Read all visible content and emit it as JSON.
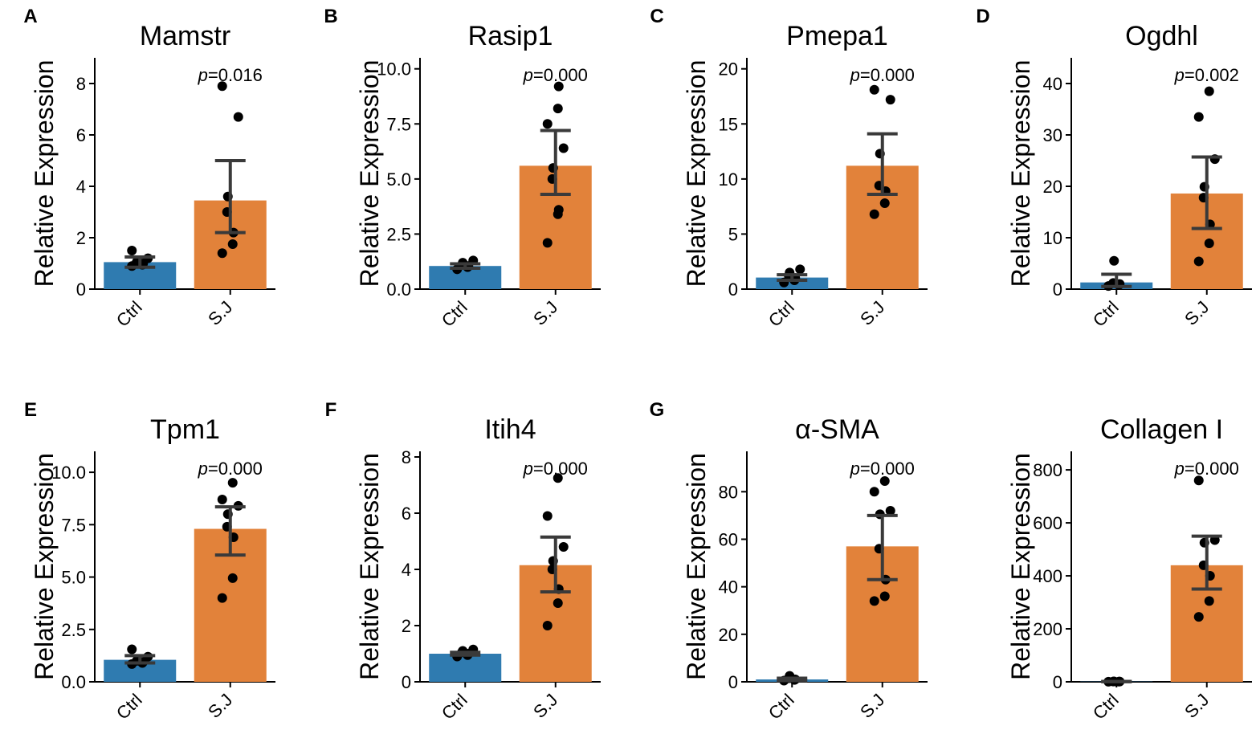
{
  "chart_data": [
    {
      "type": "bar",
      "panel": "A",
      "title": "Mamstr",
      "ylabel": "Relative Expression",
      "categories": [
        "Ctrl",
        "S.J"
      ],
      "values": [
        1.05,
        3.45
      ],
      "error": [
        [
          0.85,
          1.25
        ],
        [
          2.2,
          5.0
        ]
      ],
      "points": [
        [
          0.9,
          0.95,
          1.0,
          1.05,
          1.1,
          1.2,
          1.5
        ],
        [
          1.4,
          1.75,
          2.2,
          3.0,
          3.6,
          6.7,
          7.9
        ]
      ],
      "p_value": "=0.016",
      "ylim": [
        0,
        9
      ],
      "yticks": [
        "0",
        "2",
        "4",
        "6",
        "8"
      ],
      "colors": [
        "#2f7bb0",
        "#e2823a"
      ]
    },
    {
      "type": "bar",
      "panel": "B",
      "title": "Rasip1",
      "ylabel": "Relative Expression",
      "categories": [
        "Ctrl",
        "S.J"
      ],
      "values": [
        1.05,
        5.6
      ],
      "error": [
        [
          0.95,
          1.15
        ],
        [
          4.3,
          7.2
        ]
      ],
      "points": [
        [
          0.9,
          1.0,
          1.05,
          1.1,
          1.2,
          1.3
        ],
        [
          2.1,
          3.4,
          3.6,
          5.0,
          5.5,
          6.4,
          7.5,
          8.2,
          9.2
        ]
      ],
      "p_value": "=0.000",
      "ylim": [
        0,
        10.5
      ],
      "yticks": [
        "0.0",
        "2.5",
        "5.0",
        "7.5",
        "10.0"
      ],
      "colors": [
        "#2f7bb0",
        "#e2823a"
      ]
    },
    {
      "type": "bar",
      "panel": "C",
      "title": "Pmepa1",
      "ylabel": "Relative Expression",
      "categories": [
        "Ctrl",
        "S.J"
      ],
      "values": [
        1.05,
        11.2
      ],
      "error": [
        [
          0.8,
          1.3
        ],
        [
          8.6,
          14.1
        ]
      ],
      "points": [
        [
          0.6,
          0.8,
          1.0,
          1.2,
          1.5,
          1.8
        ],
        [
          6.8,
          7.8,
          8.9,
          9.4,
          12.3,
          17.2,
          18.1
        ]
      ],
      "p_value": "=0.000",
      "ylim": [
        0,
        21
      ],
      "yticks": [
        "0",
        "5",
        "10",
        "15",
        "20"
      ],
      "colors": [
        "#2f7bb0",
        "#e2823a"
      ]
    },
    {
      "type": "bar",
      "panel": "D",
      "title": "Ogdhl",
      "ylabel": "Relative Expression",
      "categories": [
        "Ctrl",
        "S.J"
      ],
      "values": [
        1.3,
        18.6
      ],
      "error": [
        [
          0.5,
          2.9
        ],
        [
          11.8,
          25.7
        ]
      ],
      "points": [
        [
          0.6,
          0.8,
          1.0,
          1.2,
          5.5
        ],
        [
          5.4,
          8.9,
          12.6,
          17.8,
          19.9,
          25.3,
          33.5,
          38.5
        ]
      ],
      "p_value": "=0.002",
      "ylim": [
        0,
        45
      ],
      "yticks": [
        "0",
        "10",
        "20",
        "30",
        "40"
      ],
      "colors": [
        "#2f7bb0",
        "#e2823a"
      ]
    },
    {
      "type": "bar",
      "panel": "E",
      "title": "Tpm1",
      "ylabel": "Relative Expression",
      "categories": [
        "Ctrl",
        "S.J"
      ],
      "values": [
        1.05,
        7.3
      ],
      "error": [
        [
          0.9,
          1.25
        ],
        [
          6.05,
          8.35
        ]
      ],
      "points": [
        [
          0.85,
          0.9,
          0.95,
          1.0,
          1.05,
          1.2,
          1.55
        ],
        [
          4.0,
          4.95,
          6.9,
          7.4,
          8.0,
          8.4,
          8.7,
          9.5
        ]
      ],
      "p_value": "=0.000",
      "ylim": [
        0,
        11
      ],
      "yticks": [
        "0.0",
        "2.5",
        "5.0",
        "7.5",
        "10.0"
      ],
      "colors": [
        "#2f7bb0",
        "#e2823a"
      ]
    },
    {
      "type": "bar",
      "panel": "F",
      "title": "Itih4",
      "ylabel": "Relative Expression",
      "categories": [
        "Ctrl",
        "S.J"
      ],
      "values": [
        1.0,
        4.15
      ],
      "error": [
        [
          0.95,
          1.05
        ],
        [
          3.2,
          5.15
        ]
      ],
      "points": [
        [
          0.9,
          0.95,
          1.0,
          1.05,
          1.1,
          1.15
        ],
        [
          2.0,
          2.8,
          3.3,
          4.0,
          4.3,
          4.8,
          5.9,
          7.25
        ]
      ],
      "p_value": "=0.000",
      "ylim": [
        0,
        8.2
      ],
      "yticks": [
        "0",
        "2",
        "4",
        "6",
        "8"
      ],
      "colors": [
        "#2f7bb0",
        "#e2823a"
      ]
    },
    {
      "type": "bar",
      "panel": "G",
      "title": "α-SMA",
      "ylabel": "Relative Expression",
      "categories": [
        "Ctrl",
        "S.J"
      ],
      "values": [
        1.0,
        57.0
      ],
      "error": [
        [
          0.5,
          1.5
        ],
        [
          43.0,
          70.0
        ]
      ],
      "points": [
        [
          0.5,
          0.8,
          1.0,
          1.5,
          2.5
        ],
        [
          34.0,
          36.0,
          43.0,
          56.0,
          70.5,
          72.0,
          80.0,
          84.5
        ]
      ],
      "p_value": "=0.000",
      "ylim": [
        0,
        97
      ],
      "yticks": [
        "0",
        "20",
        "40",
        "60",
        "80"
      ],
      "colors": [
        "#2f7bb0",
        "#e2823a"
      ]
    },
    {
      "type": "bar",
      "panel": "",
      "title": "Collagen I",
      "ylabel": "Relative Expression",
      "categories": [
        "Ctrl",
        "S.J"
      ],
      "values": [
        1.0,
        440.0
      ],
      "error": [
        [
          0.5,
          1.5
        ],
        [
          350.0,
          550.0
        ]
      ],
      "points": [
        [
          0.5,
          0.8,
          1.0,
          1.2,
          1.5
        ],
        [
          245.0,
          305.0,
          400.0,
          440.0,
          525.0,
          535.0,
          760.0
        ]
      ],
      "p_value": "=0.000",
      "ylim": [
        0,
        870
      ],
      "yticks": [
        "0",
        "200",
        "400",
        "600",
        "800"
      ],
      "colors": [
        "#2f7bb0",
        "#e2823a"
      ]
    }
  ],
  "labels": {
    "p_prefix": "p"
  }
}
